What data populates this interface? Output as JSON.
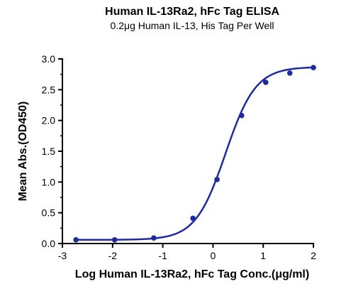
{
  "chart_data": {
    "type": "scatter",
    "title": "Human IL-13Ra2, hFc Tag ELISA",
    "subtitle": "0.2μg Human IL-13, His Tag Per Well",
    "xlabel": "Log Human IL-13Ra2, hFc Tag Conc.(μg/ml)",
    "ylabel": "Mean Abs.(OD450)",
    "xlim": [
      -3,
      2
    ],
    "ylim": [
      0,
      3.0
    ],
    "x_ticks": [
      "-3",
      "-2",
      "-1",
      "0",
      "1",
      "2"
    ],
    "y_ticks": [
      "0.0",
      "0.5",
      "1.0",
      "1.5",
      "2.0",
      "2.5",
      "3.0"
    ],
    "grid": false,
    "series": [
      {
        "color": "#1f2a9e",
        "points": [
          {
            "x": -2.73,
            "y": 0.06
          },
          {
            "x": -1.96,
            "y": 0.06
          },
          {
            "x": -1.18,
            "y": 0.09
          },
          {
            "x": -0.4,
            "y": 0.41
          },
          {
            "x": 0.08,
            "y": 1.04
          },
          {
            "x": 0.57,
            "y": 2.08
          },
          {
            "x": 1.05,
            "y": 2.62
          },
          {
            "x": 1.53,
            "y": 2.77
          },
          {
            "x": 2.0,
            "y": 2.86
          }
        ],
        "fit": {
          "bottom": 0.06,
          "top": 2.87,
          "logEC50": 0.25,
          "hill": 1.45
        }
      }
    ]
  }
}
